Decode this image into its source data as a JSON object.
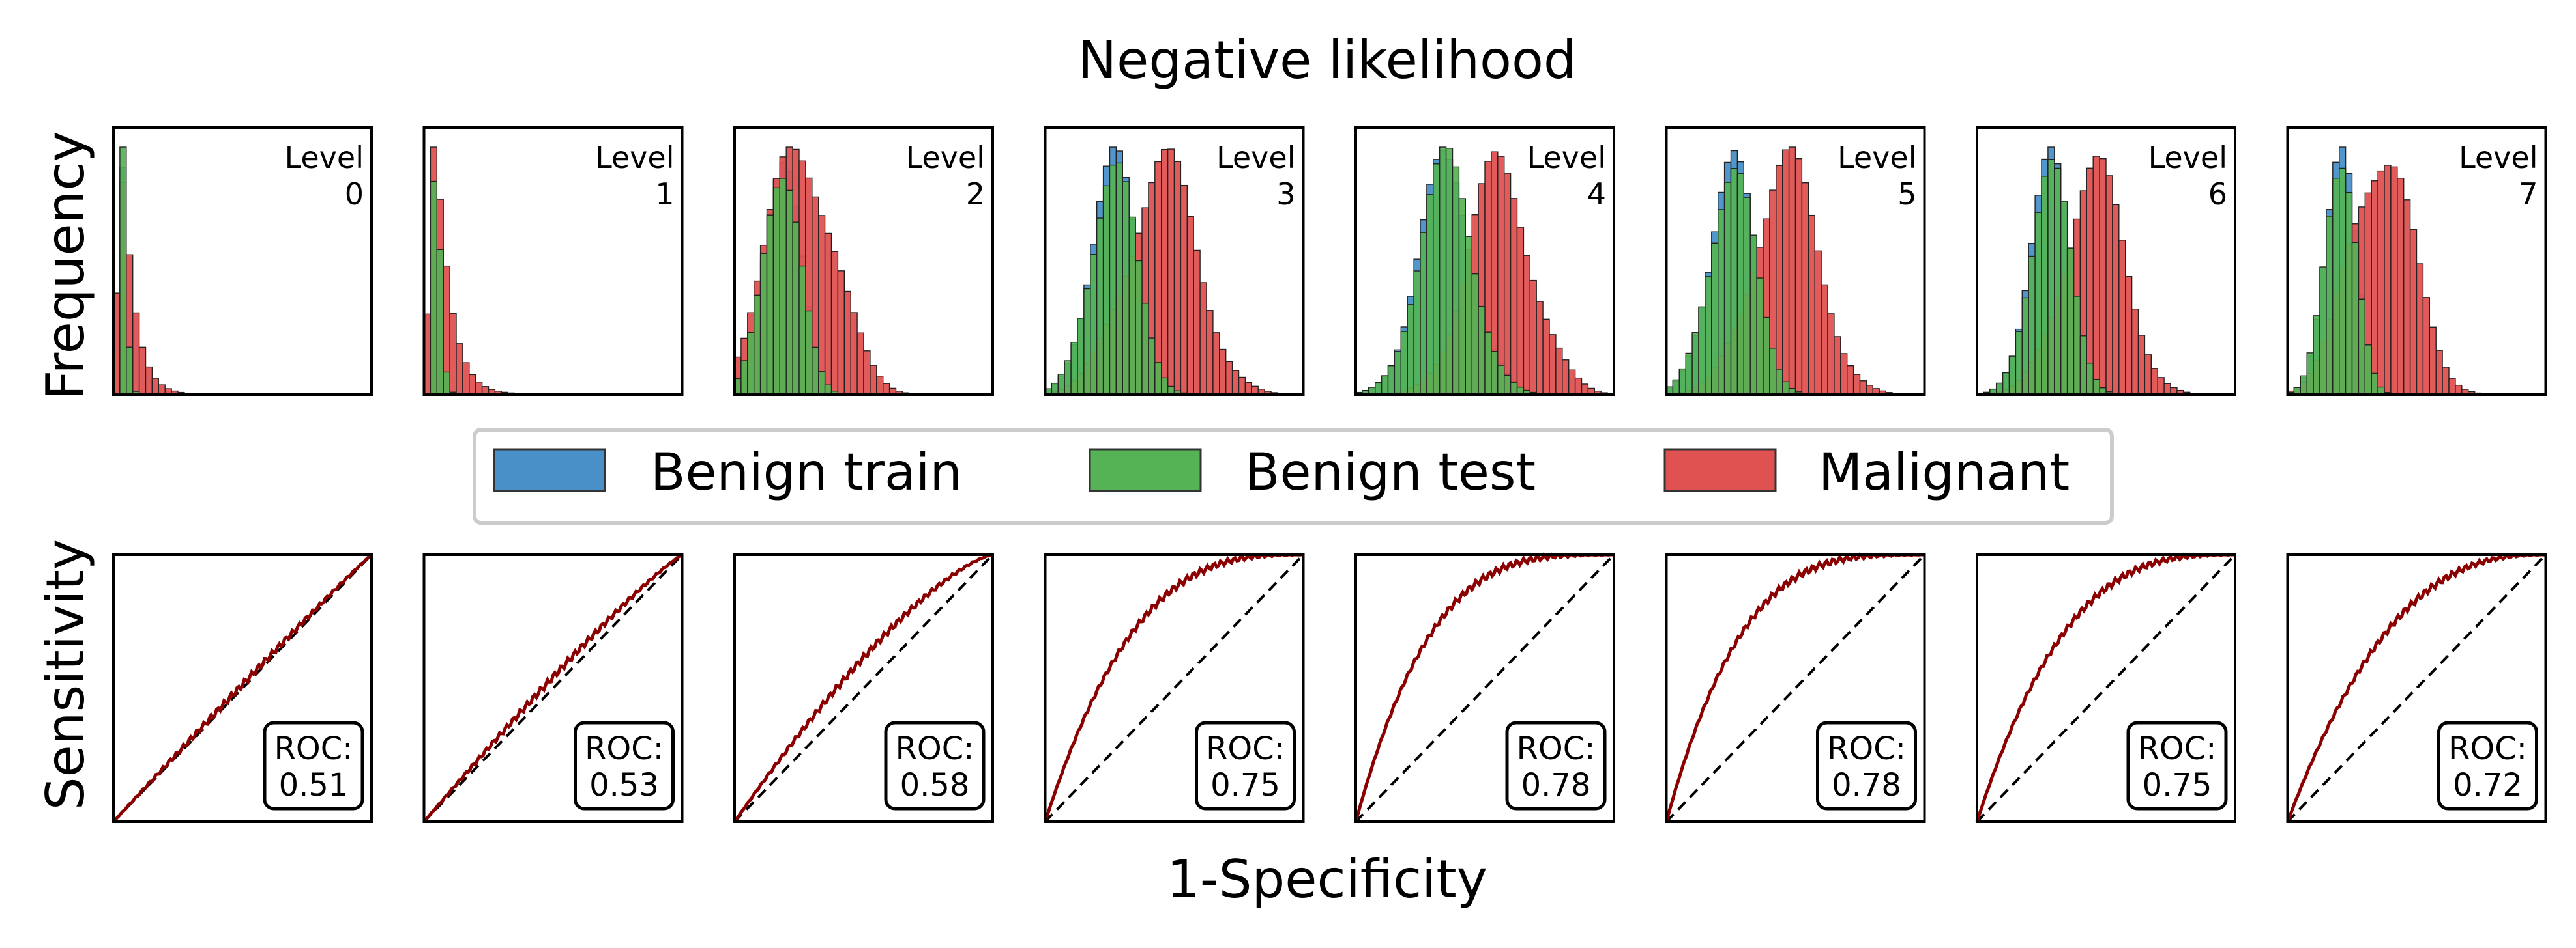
{
  "chart_data": {
    "type": "bar",
    "title": "Negative likelihood",
    "histogram_ylabel": "Frequency",
    "roc_ylabel": "Sensitivity",
    "roc_xlabel": "1-Specificity",
    "level_word": "Level",
    "roc_word": "ROC:",
    "legend": [
      {
        "label": "Benign train",
        "color": "#4a90c8"
      },
      {
        "label": "Benign test",
        "color": "#55b355"
      },
      {
        "label": "Malignant",
        "color": "#e05252"
      }
    ],
    "roc_line_color": "#8b0000",
    "levels": [
      {
        "level": "0",
        "roc": "0.51",
        "benign_peak": 0.04,
        "benign_width": 0.025,
        "malignant_peak": 0.05,
        "malignant_width": 0.06,
        "auc": 0.51
      },
      {
        "level": "1",
        "roc": "0.53",
        "benign_peak": 0.05,
        "benign_width": 0.025,
        "malignant_peak": 0.06,
        "malignant_width": 0.06,
        "auc": 0.53
      },
      {
        "level": "2",
        "roc": "0.58",
        "benign_peak": 0.18,
        "benign_width": 0.07,
        "malignant_peak": 0.26,
        "malignant_width": 0.13,
        "auc": 0.58
      },
      {
        "level": "3",
        "roc": "0.75",
        "benign_peak": 0.26,
        "benign_width": 0.09,
        "malignant_peak": 0.45,
        "malignant_width": 0.14,
        "auc": 0.75
      },
      {
        "level": "4",
        "roc": "0.78",
        "benign_peak": 0.35,
        "benign_width": 0.11,
        "malignant_peak": 0.56,
        "malignant_width": 0.13,
        "auc": 0.78
      },
      {
        "level": "5",
        "roc": "0.78",
        "benign_peak": 0.25,
        "benign_width": 0.09,
        "malignant_peak": 0.46,
        "malignant_width": 0.13,
        "auc": 0.78
      },
      {
        "level": "6",
        "roc": "0.75",
        "benign_peak": 0.28,
        "benign_width": 0.08,
        "malignant_peak": 0.45,
        "malignant_width": 0.12,
        "auc": 0.75
      },
      {
        "level": "7",
        "roc": "0.72",
        "benign_peak": 0.2,
        "benign_width": 0.06,
        "malignant_peak": 0.36,
        "malignant_width": 0.12,
        "auc": 0.72
      }
    ],
    "histogram_xlim": [
      0,
      1
    ],
    "roc_xlim": [
      0,
      1
    ],
    "roc_ylim": [
      0,
      1
    ],
    "grid": false,
    "legend_position": "center"
  }
}
